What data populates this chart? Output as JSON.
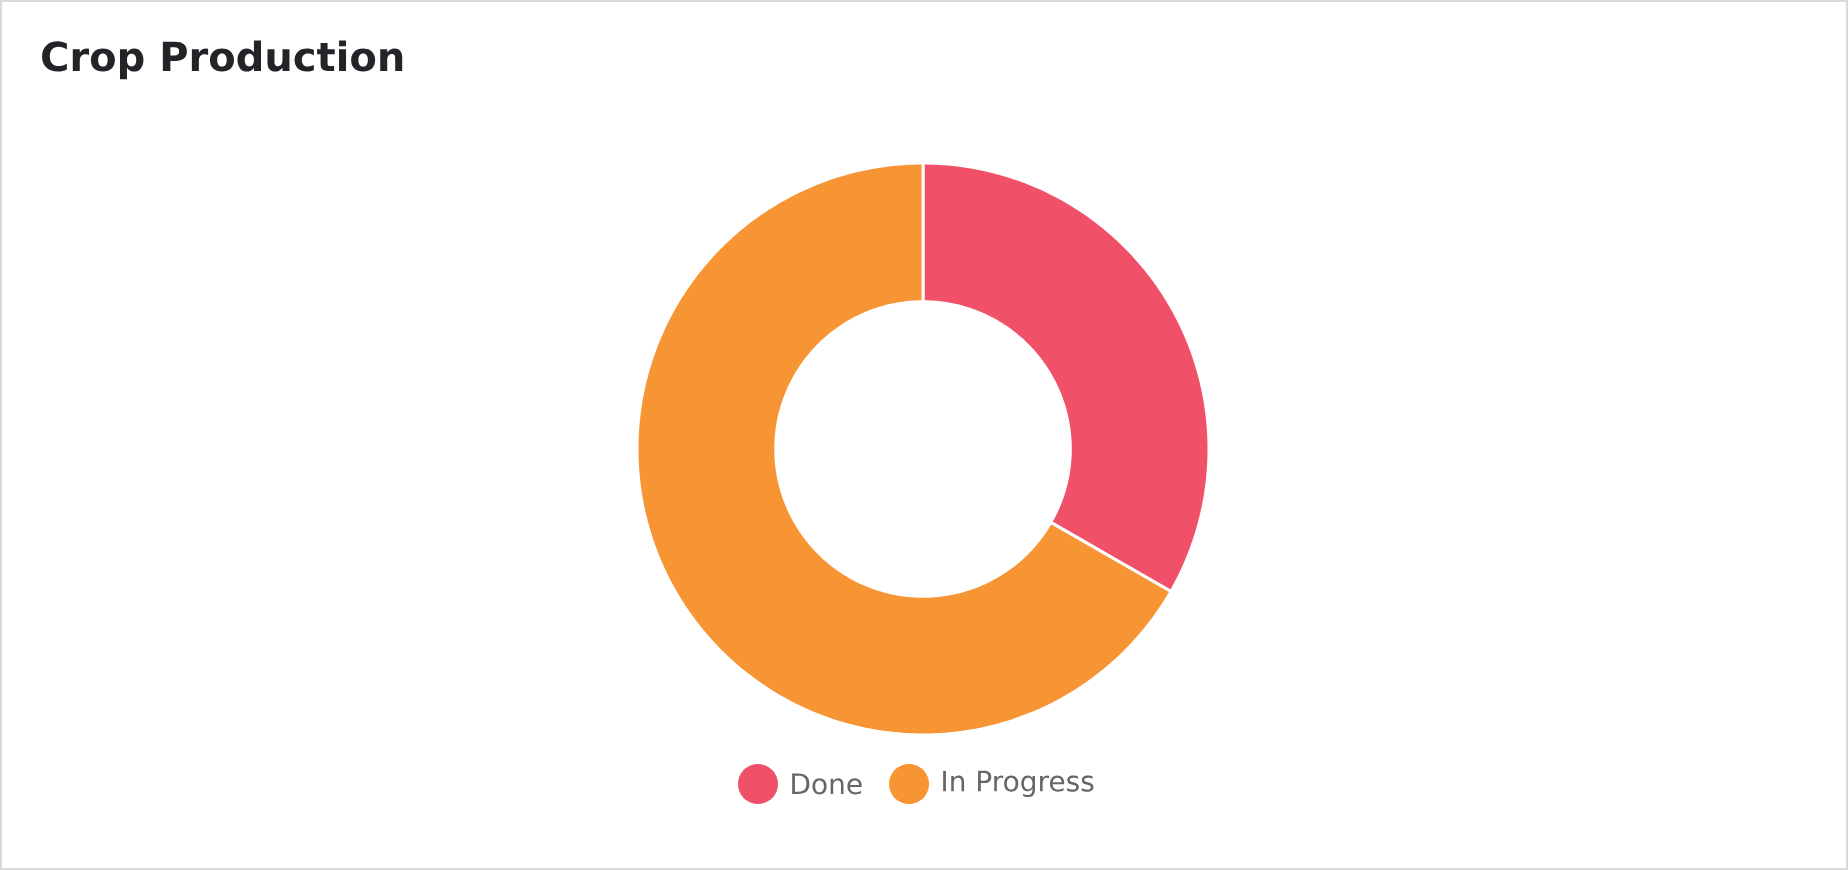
{
  "chart_data": {
    "type": "donut",
    "title": "Crop Production",
    "categories": [
      "Done",
      "In Progress"
    ],
    "values": [
      33.3,
      66.7
    ],
    "colors": [
      "#f05168",
      "#f79433"
    ],
    "legend": "bottom"
  }
}
